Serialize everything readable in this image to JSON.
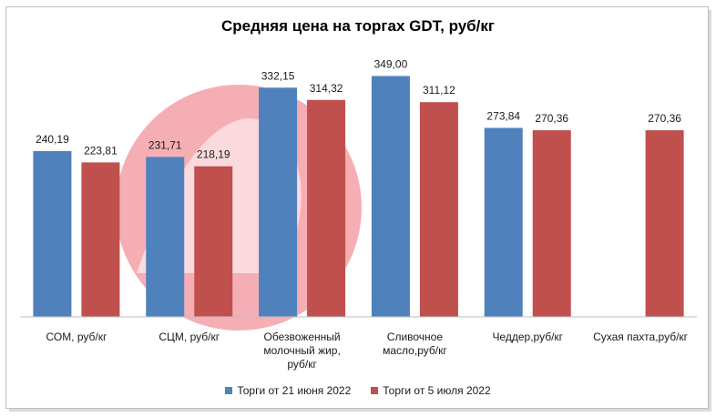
{
  "chart_data": {
    "type": "bar",
    "title": "Средняя цена на торгах GDT, руб/кг",
    "categories": [
      "СОМ, руб/кг",
      "СЦМ, руб/кг",
      "Обезвоженный молочный жир, руб/кг",
      "Сливочное масло,руб/кг",
      "Чеддер,руб/кг",
      "Сухая пахта,руб/кг"
    ],
    "category_lines": [
      [
        "СОМ, руб/кг"
      ],
      [
        "СЦМ, руб/кг"
      ],
      [
        "Обезвоженный",
        "молочный жир,",
        "руб/кг"
      ],
      [
        "Сливочное",
        "масло,руб/кг"
      ],
      [
        "Чеддер,руб/кг"
      ],
      [
        "Сухая пахта,руб/кг"
      ]
    ],
    "series": [
      {
        "name": "Торги от 21 июня 2022",
        "color": "#4f81bd",
        "values": [
          240.19,
          231.71,
          332.15,
          349.0,
          273.84,
          null
        ],
        "labels": [
          "240,19",
          "231,71",
          "332,15",
          "349,00",
          "273,84",
          ""
        ]
      },
      {
        "name": "Торги от 5 июля 2022",
        "color": "#c0504d",
        "values": [
          223.81,
          218.19,
          314.32,
          311.12,
          270.36,
          270.36
        ],
        "labels": [
          "223,81",
          "218,19",
          "314,32",
          "311,12",
          "270,36",
          "270,36"
        ]
      }
    ],
    "ylim": [
      0,
      380
    ],
    "y_axis_visible": false,
    "grid": false,
    "legend_position": "bottom",
    "watermark_color": "#f4a0a8"
  }
}
